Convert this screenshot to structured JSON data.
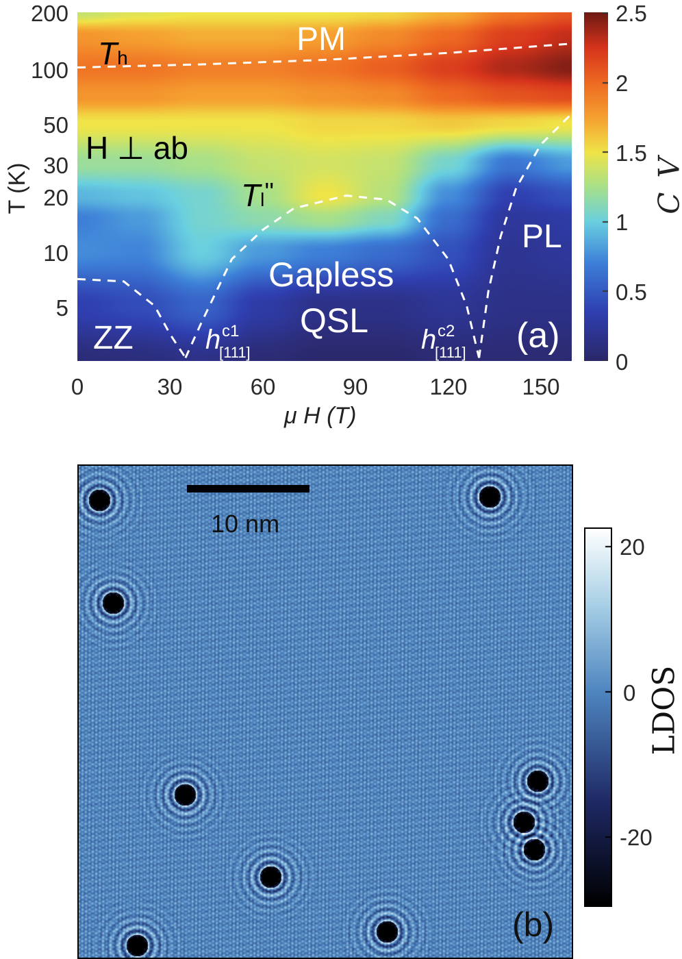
{
  "chart_data": [
    {
      "type": "heatmap",
      "panel_label": "(a)",
      "xlabel": "μ H (T)",
      "ylabel": "T (K)",
      "colorbar_label": "C_V",
      "xlim": [
        0,
        160
      ],
      "ylim": [
        2.5,
        200
      ],
      "y_scale": "log",
      "x_ticks": [
        "0",
        "30",
        "60",
        "90",
        "120",
        "150"
      ],
      "y_ticks": [
        "200",
        "100",
        "50",
        "30",
        "20",
        "10",
        "5"
      ],
      "colorbar_ticks": [
        "2.5",
        "2",
        "1.5",
        "1",
        "0.5",
        "0"
      ],
      "colorbar_range": [
        0,
        2.5
      ],
      "colormap": [
        [
          0,
          "#2b2768"
        ],
        [
          0.35,
          "#2f3fb0"
        ],
        [
          0.7,
          "#3d7fd8"
        ],
        [
          1.0,
          "#6ad0e0"
        ],
        [
          1.25,
          "#a8e08a"
        ],
        [
          1.5,
          "#f0e448"
        ],
        [
          1.75,
          "#f5a030"
        ],
        [
          2.0,
          "#ee6a22"
        ],
        [
          2.25,
          "#d6341c"
        ],
        [
          2.5,
          "#6e1a14"
        ]
      ],
      "grid": {
        "H": [
          0,
          20,
          40,
          60,
          80,
          100,
          120,
          140,
          160
        ],
        "T": [
          2.5,
          5,
          10,
          15,
          20,
          30,
          50,
          70,
          100,
          150,
          200
        ],
        "Cv": [
          [
            0.08,
            0.1,
            0.15,
            0.06,
            0.02,
            0.02,
            0.06,
            0.06,
            0.05
          ],
          [
            0.35,
            0.42,
            0.55,
            0.3,
            0.15,
            0.15,
            0.22,
            0.15,
            0.15
          ],
          [
            0.75,
            0.72,
            1.0,
            0.8,
            0.7,
            0.6,
            0.45,
            0.2,
            0.25
          ],
          [
            0.7,
            0.8,
            1.05,
            1.15,
            1.25,
            1.1,
            0.6,
            0.25,
            0.3
          ],
          [
            0.9,
            0.95,
            1.05,
            1.25,
            1.5,
            1.3,
            0.75,
            0.35,
            0.45
          ],
          [
            1.2,
            1.2,
            1.25,
            1.35,
            1.4,
            1.35,
            1.05,
            0.65,
            0.8
          ],
          [
            1.5,
            1.5,
            1.5,
            1.5,
            1.55,
            1.55,
            1.6,
            1.55,
            1.5
          ],
          [
            1.8,
            1.8,
            1.75,
            1.75,
            1.8,
            1.85,
            2.0,
            2.1,
            2.15
          ],
          [
            1.95,
            1.95,
            1.9,
            1.9,
            1.95,
            2.05,
            2.2,
            2.35,
            2.45
          ],
          [
            1.8,
            1.75,
            1.7,
            1.7,
            1.75,
            1.85,
            2.0,
            2.2,
            2.3
          ],
          [
            1.35,
            1.45,
            1.5,
            1.5,
            1.5,
            1.55,
            1.7,
            1.95,
            2.1
          ]
        ]
      },
      "boundaries": [
        {
          "name": "T_h",
          "points": [
            [
              0,
              100
            ],
            [
              40,
              104
            ],
            [
              80,
              110
            ],
            [
              120,
              120
            ],
            [
              160,
              135
            ]
          ]
        },
        {
          "name": "T_l''",
          "points": [
            [
              35,
              2.6
            ],
            [
              40,
              4
            ],
            [
              50,
              9
            ],
            [
              60,
              13
            ],
            [
              70,
              17
            ],
            [
              87,
              20
            ],
            [
              100,
              19
            ],
            [
              110,
              15
            ],
            [
              120,
              9
            ],
            [
              126,
              5
            ],
            [
              130,
              2.6
            ]
          ]
        },
        {
          "name": "ZZ",
          "points": [
            [
              0,
              7
            ],
            [
              15,
              6.8
            ],
            [
              25,
              5
            ],
            [
              30,
              3.5
            ],
            [
              35,
              2.6
            ]
          ]
        },
        {
          "name": "PL",
          "points": [
            [
              130,
              2.6
            ],
            [
              133,
              6
            ],
            [
              137,
              12
            ],
            [
              142,
              22
            ],
            [
              150,
              38
            ],
            [
              160,
              56
            ]
          ]
        }
      ],
      "annotations": {
        "pm": "PM",
        "th_main": "T",
        "th_sub": "h",
        "field_dir": "H ⊥ ab",
        "tl_main": "T",
        "tl_sub": "l",
        "tl_sup": "''",
        "gapless": "Gapless",
        "qsl": "QSL",
        "zz": "ZZ",
        "pl": "PL",
        "hc1_main": "h",
        "hc1_sup": "c1",
        "hc1_sub": "[111]",
        "hc2_main": "h",
        "hc2_sup": "c2",
        "hc2_sub": "[111]"
      }
    },
    {
      "type": "image",
      "panel_label": "(b)",
      "scale_bar": "10 nm",
      "colorbar_label": "LDOS",
      "colorbar_ticks": [
        "20",
        "0",
        "-20"
      ],
      "colorbar_range": [
        -29.5,
        22.4
      ],
      "colormap": [
        [
          -29.5,
          "#000000"
        ],
        [
          -15,
          "#1f2a66"
        ],
        [
          0,
          "#4f86c0"
        ],
        [
          12,
          "#a8d0e6"
        ],
        [
          22.4,
          "#ffffff"
        ]
      ]
    }
  ]
}
